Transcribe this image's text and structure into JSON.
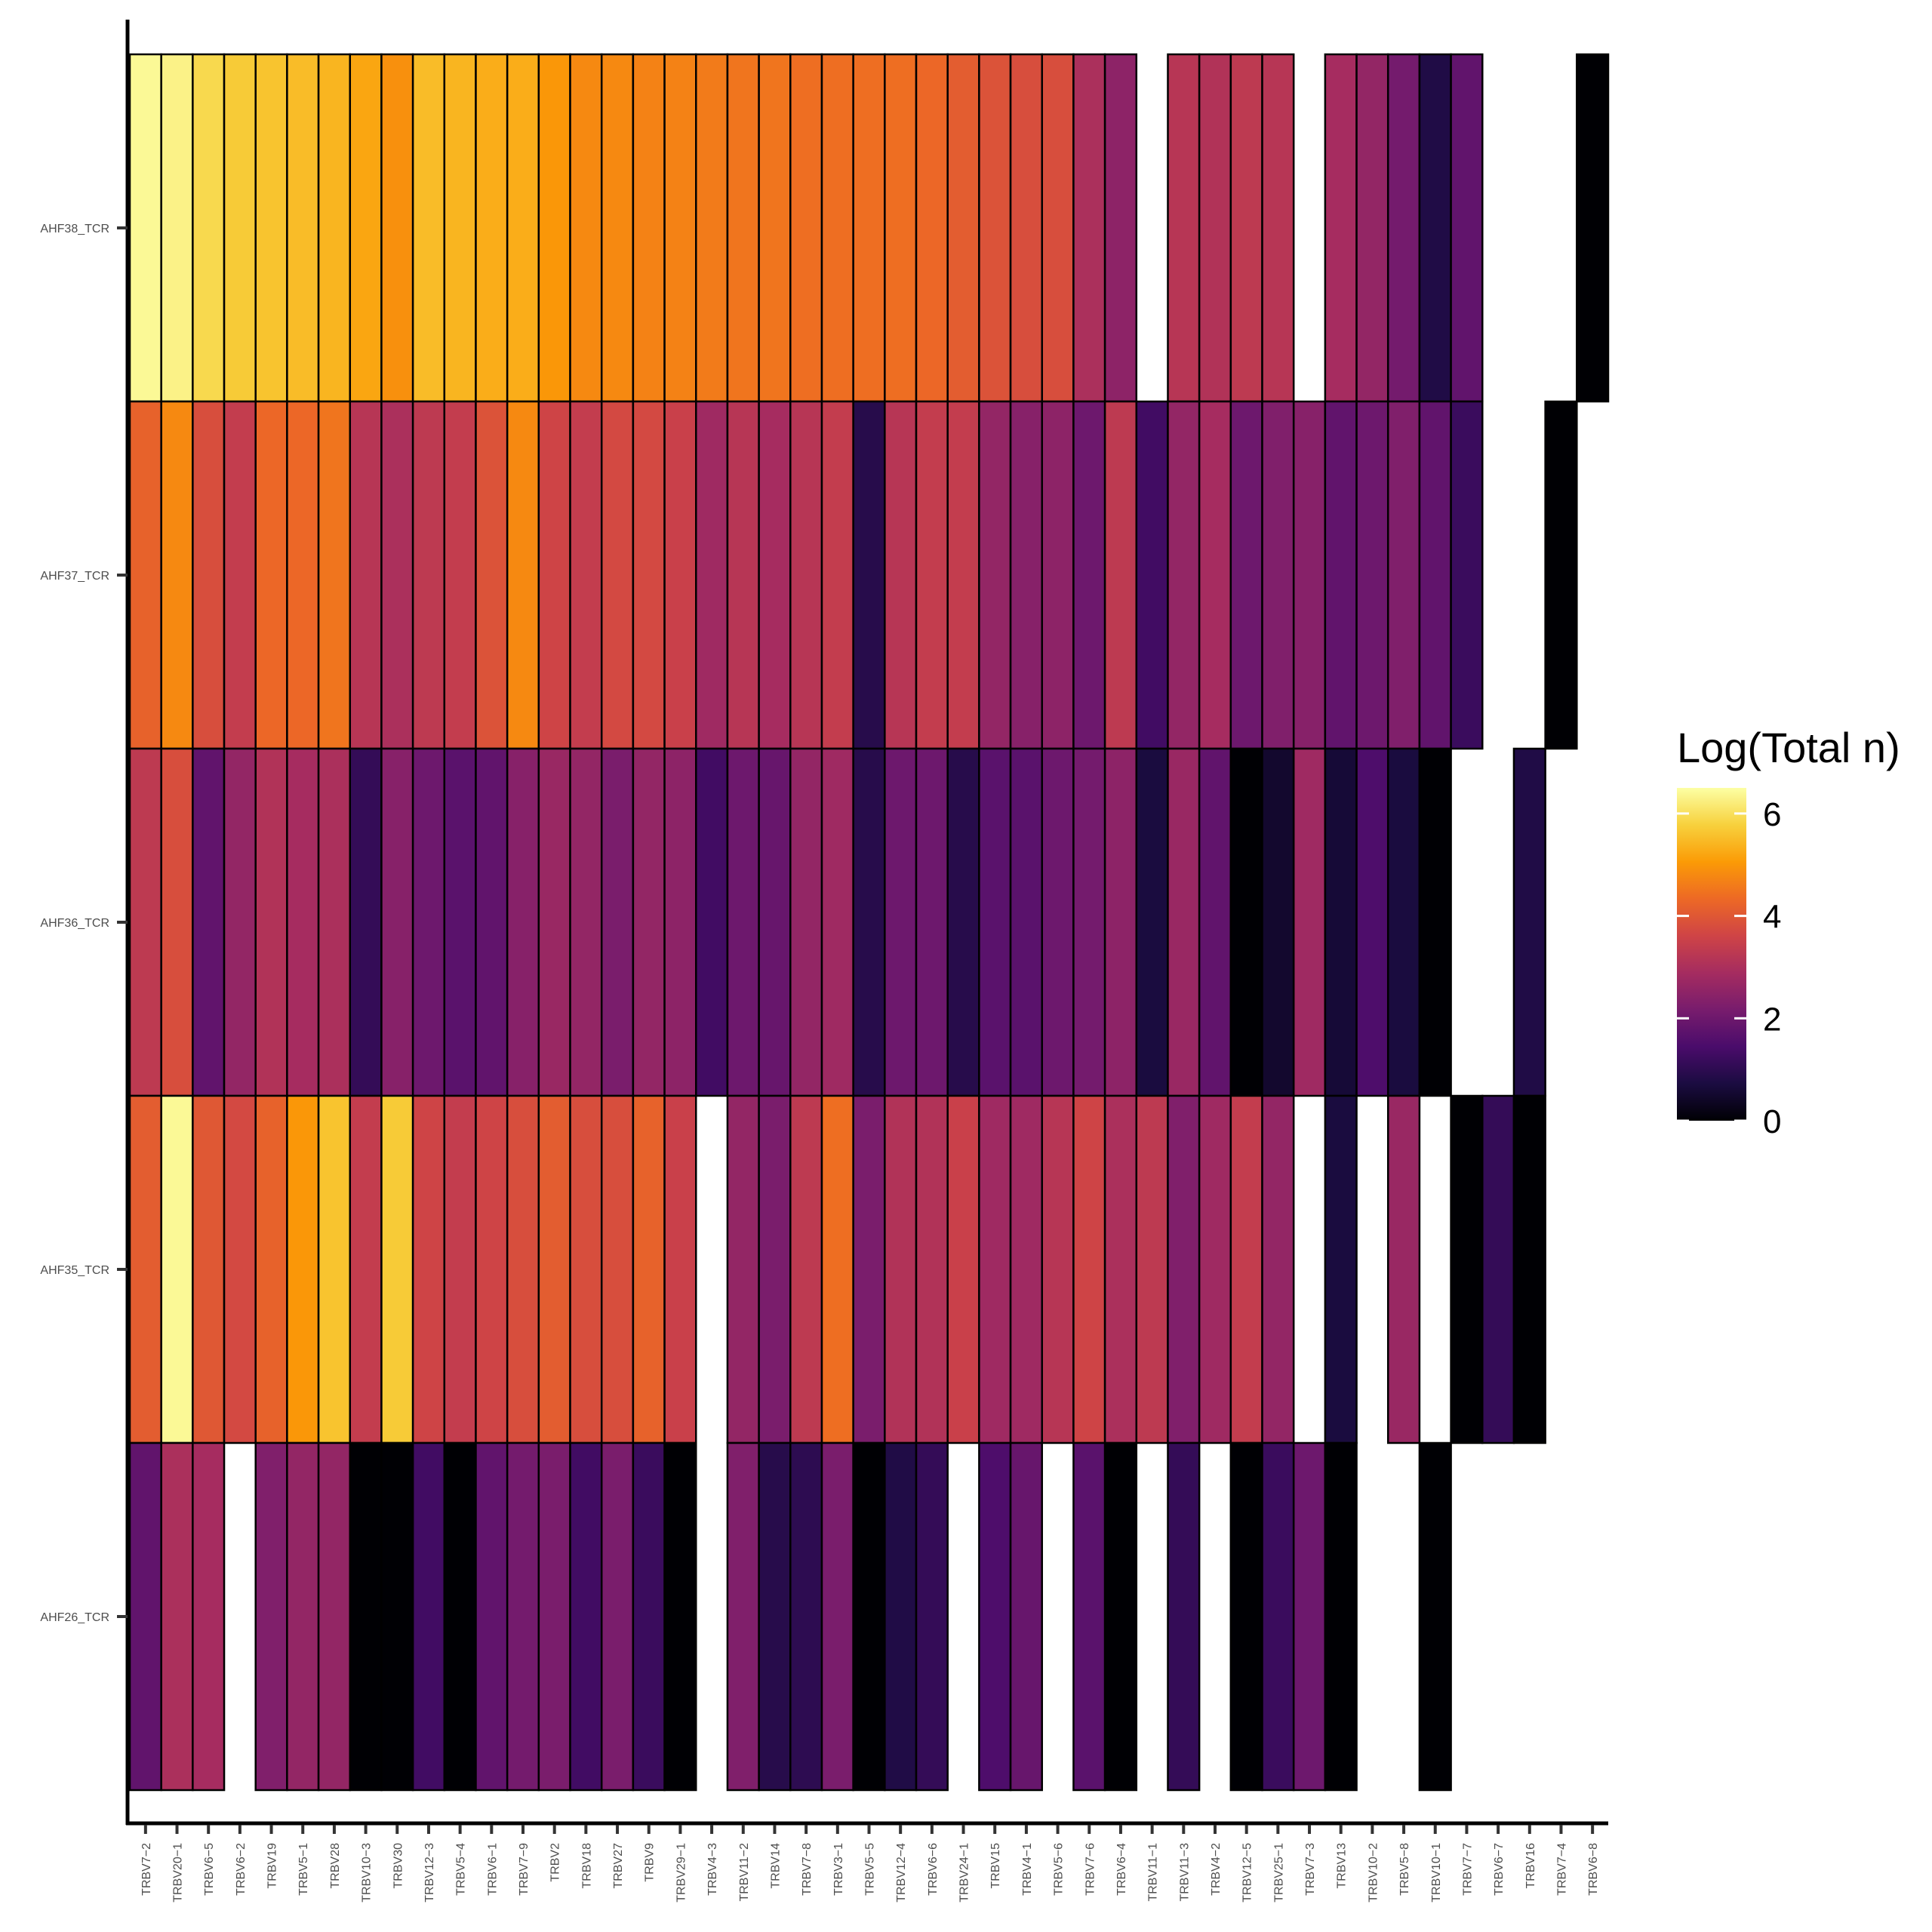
{
  "chart_data": {
    "type": "heatmap",
    "title": "",
    "xlabel": "",
    "ylabel": "",
    "x_categories": [
      "TRBV7-2",
      "TRBV20-1",
      "TRBV6-5",
      "TRBV6-2",
      "TRBV19",
      "TRBV5-1",
      "TRBV28",
      "TRBV10-3",
      "TRBV30",
      "TRBV12-3",
      "TRBV5-4",
      "TRBV6-1",
      "TRBV7-9",
      "TRBV2",
      "TRBV18",
      "TRBV27",
      "TRBV9",
      "TRBV29-1",
      "TRBV4-3",
      "TRBV11-2",
      "TRBV14",
      "TRBV7-8",
      "TRBV3-1",
      "TRBV5-5",
      "TRBV12-4",
      "TRBV6-6",
      "TRBV24-1",
      "TRBV15",
      "TRBV4-1",
      "TRBV5-6",
      "TRBV7-6",
      "TRBV6-4",
      "TRBV11-1",
      "TRBV11-3",
      "TRBV4-2",
      "TRBV12-5",
      "TRBV25-1",
      "TRBV7-3",
      "TRBV13",
      "TRBV10-2",
      "TRBV5-8",
      "TRBV10-1",
      "TRBV7-7",
      "TRBV6-7",
      "TRBV16",
      "TRBV7-4",
      "TRBV6-8"
    ],
    "x_tick_labels": [
      "TRBV7−2",
      "TRBV20−1",
      "TRBV6−5",
      "TRBV6−2",
      "TRBV19",
      "TRBV5−1",
      "TRBV28",
      "TRBV10−3",
      "TRBV30",
      "TRBV12−3",
      "TRBV5−4",
      "TRBV6−1",
      "TRBV7−9",
      "TRBV2",
      "TRBV18",
      "TRBV27",
      "TRBV9",
      "TRBV29−1",
      "TRBV4−3",
      "TRBV11−2",
      "TRBV14",
      "TRBV7−8",
      "TRBV3−1",
      "TRBV5−5",
      "TRBV12−4",
      "TRBV6−6",
      "TRBV24−1",
      "TRBV15",
      "TRBV4−1",
      "TRBV5−6",
      "TRBV7−6",
      "TRBV6−4",
      "TRBV11−1",
      "TRBV11−3",
      "TRBV4−2",
      "TRBV12−5",
      "TRBV25−1",
      "TRBV7−3",
      "TRBV13",
      "TRBV10−2",
      "TRBV5−8",
      "TRBV10−1",
      "TRBV7−7",
      "TRBV6−7",
      "TRBV16",
      "TRBV7−4",
      "TRBV6−8"
    ],
    "y_categories": [
      "AHF38_TCR",
      "AHF37_TCR",
      "AHF36_TCR",
      "AHF35_TCR",
      "AHF26_TCR"
    ],
    "values": [
      [
        6.4,
        6.3,
        5.9,
        5.7,
        5.6,
        5.5,
        5.4,
        5.2,
        4.9,
        5.5,
        5.4,
        5.3,
        5.3,
        5.0,
        4.8,
        4.8,
        4.7,
        4.7,
        4.6,
        4.5,
        4.5,
        4.4,
        4.4,
        4.4,
        4.4,
        4.3,
        4.1,
        3.9,
        3.8,
        3.8,
        3.0,
        2.5,
        null,
        3.2,
        3.1,
        3.3,
        3.2,
        null,
        2.9,
        2.6,
        2.1,
        0.8,
        1.8,
        null,
        null,
        null,
        0.0
      ],
      [
        4.2,
        4.8,
        3.8,
        3.4,
        4.3,
        4.3,
        4.5,
        3.2,
        3.0,
        3.3,
        3.4,
        3.9,
        4.8,
        3.6,
        3.4,
        3.7,
        3.7,
        3.5,
        2.8,
        3.2,
        2.9,
        3.2,
        3.4,
        0.9,
        3.2,
        3.4,
        3.4,
        2.6,
        2.4,
        2.5,
        2.0,
        3.3,
        1.3,
        2.6,
        2.9,
        2.0,
        2.3,
        2.4,
        1.8,
        2.0,
        2.3,
        1.8,
        1.2,
        null,
        null,
        0.0,
        null
      ],
      [
        3.3,
        3.8,
        1.8,
        2.6,
        3.1,
        2.9,
        3.0,
        1.1,
        2.4,
        2.0,
        1.7,
        1.8,
        2.4,
        2.7,
        2.6,
        2.2,
        2.6,
        2.5,
        1.3,
        2.0,
        1.9,
        2.6,
        2.8,
        0.9,
        2.0,
        2.0,
        0.9,
        1.7,
        1.7,
        2.0,
        2.1,
        2.5,
        0.7,
        2.7,
        1.8,
        0.0,
        0.5,
        2.8,
        0.6,
        1.5,
        0.7,
        0.0,
        null,
        null,
        0.8,
        null,
        null
      ],
      [
        4.1,
        6.4,
        4.0,
        3.7,
        4.2,
        5.0,
        5.6,
        3.4,
        5.7,
        3.6,
        3.4,
        3.6,
        3.8,
        4.1,
        3.8,
        3.8,
        4.2,
        3.5,
        null,
        2.6,
        2.2,
        3.3,
        4.4,
        2.2,
        3.1,
        3.1,
        3.5,
        2.8,
        2.8,
        3.2,
        3.6,
        3.0,
        3.3,
        2.3,
        2.8,
        3.4,
        2.6,
        null,
        0.7,
        null,
        2.7,
        null,
        0.0,
        1.1,
        0.0,
        null,
        null
      ],
      [
        1.8,
        3.0,
        2.9,
        null,
        2.3,
        2.6,
        2.6,
        0.0,
        0.0,
        1.3,
        0.0,
        1.8,
        2.1,
        2.2,
        1.3,
        2.2,
        1.2,
        0.0,
        null,
        2.3,
        0.9,
        1.0,
        2.2,
        0.0,
        0.8,
        1.1,
        null,
        1.5,
        1.9,
        null,
        1.7,
        0.0,
        null,
        1.1,
        null,
        0.0,
        1.2,
        2.0,
        0.0,
        null,
        null,
        0.0,
        null,
        null,
        null,
        null,
        null
      ]
    ],
    "color_scale": {
      "name": "inferno",
      "stops": [
        "#000004",
        "#1b0c41",
        "#4a0c6b",
        "#781c6d",
        "#a52c60",
        "#cf4446",
        "#ed6925",
        "#fb9b06",
        "#f7d13d",
        "#fcffa4"
      ],
      "domain": [
        0,
        6.5
      ]
    },
    "legend": {
      "title": "Log(Total n)",
      "ticks": [
        6,
        4,
        2,
        0
      ],
      "placement": "right"
    },
    "grid": false
  }
}
